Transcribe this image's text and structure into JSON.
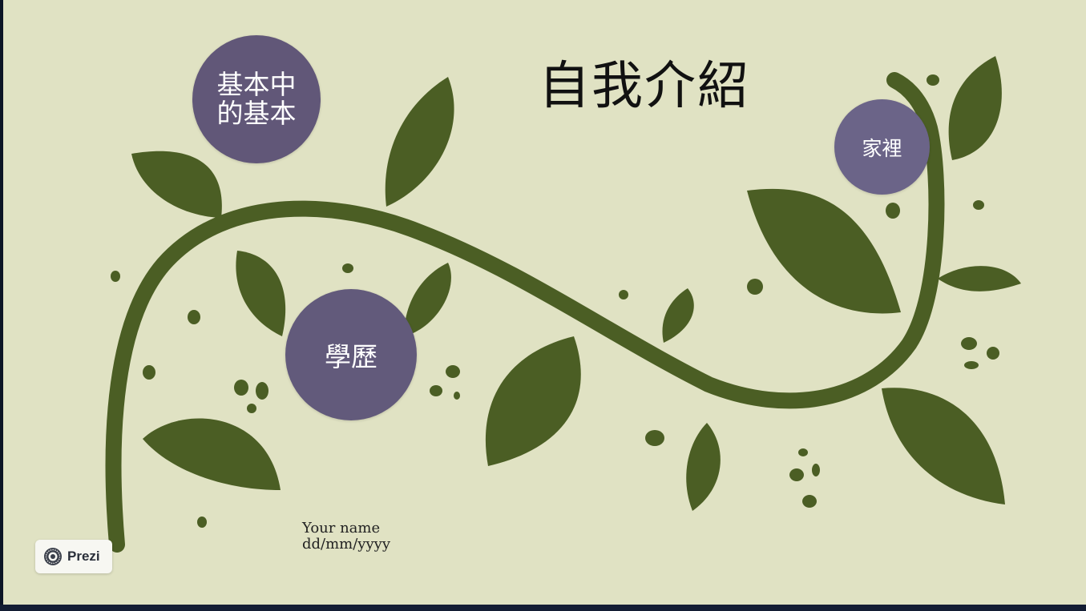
{
  "title": "自我介紹",
  "topics": {
    "basics": {
      "label": "基本中的基本"
    },
    "education": {
      "label": "學歷"
    },
    "family": {
      "label": "家裡"
    }
  },
  "author": {
    "name": "Your name",
    "date": "dd/mm/yyyy"
  },
  "badge": {
    "label": "Prezi",
    "icon": "prezi-logo-icon"
  },
  "colors": {
    "background": "#e0e2c3",
    "leaf": "#4b5e24",
    "bubble": "#625a7b",
    "text": "#111111"
  }
}
